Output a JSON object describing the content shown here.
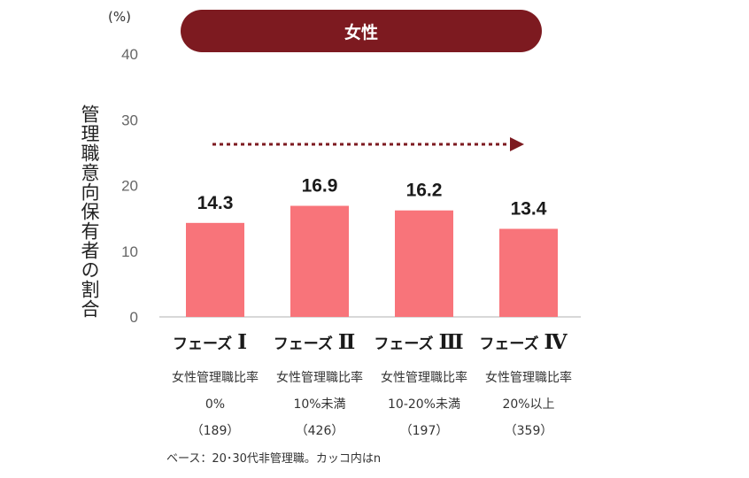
{
  "chart_data": {
    "type": "bar",
    "title": "女性",
    "unit": "(%)",
    "ylabel": "管理職意向保有者の割合",
    "ylim": [
      0,
      40
    ],
    "yticks": [
      "0",
      "10",
      "20",
      "30",
      "40"
    ],
    "phase_prefix": "フェーズ",
    "categories": [
      {
        "numeral": "Ⅰ",
        "line1": "女性管理職比率",
        "line2": "0%",
        "line3": "（189）"
      },
      {
        "numeral": "Ⅱ",
        "line1": "女性管理職比率",
        "line2": "10%未満",
        "line3": "（426）"
      },
      {
        "numeral": "Ⅲ",
        "line1": "女性管理職比率",
        "line2": "10-20%未満",
        "line3": "（197）"
      },
      {
        "numeral": "Ⅳ",
        "line1": "女性管理職比率",
        "line2": "20%以上",
        "line3": "（359）"
      }
    ],
    "values": [
      14.3,
      16.9,
      16.2,
      13.4
    ],
    "value_labels": [
      "14.3",
      "16.9",
      "16.2",
      "13.4"
    ],
    "note": "ベース：20･30代非管理職。カッコ内はn",
    "colors": {
      "bar": "#f8747a",
      "banner": "#7d1a20",
      "arrow": "#7d1a20",
      "axis": "#cccccc"
    }
  }
}
